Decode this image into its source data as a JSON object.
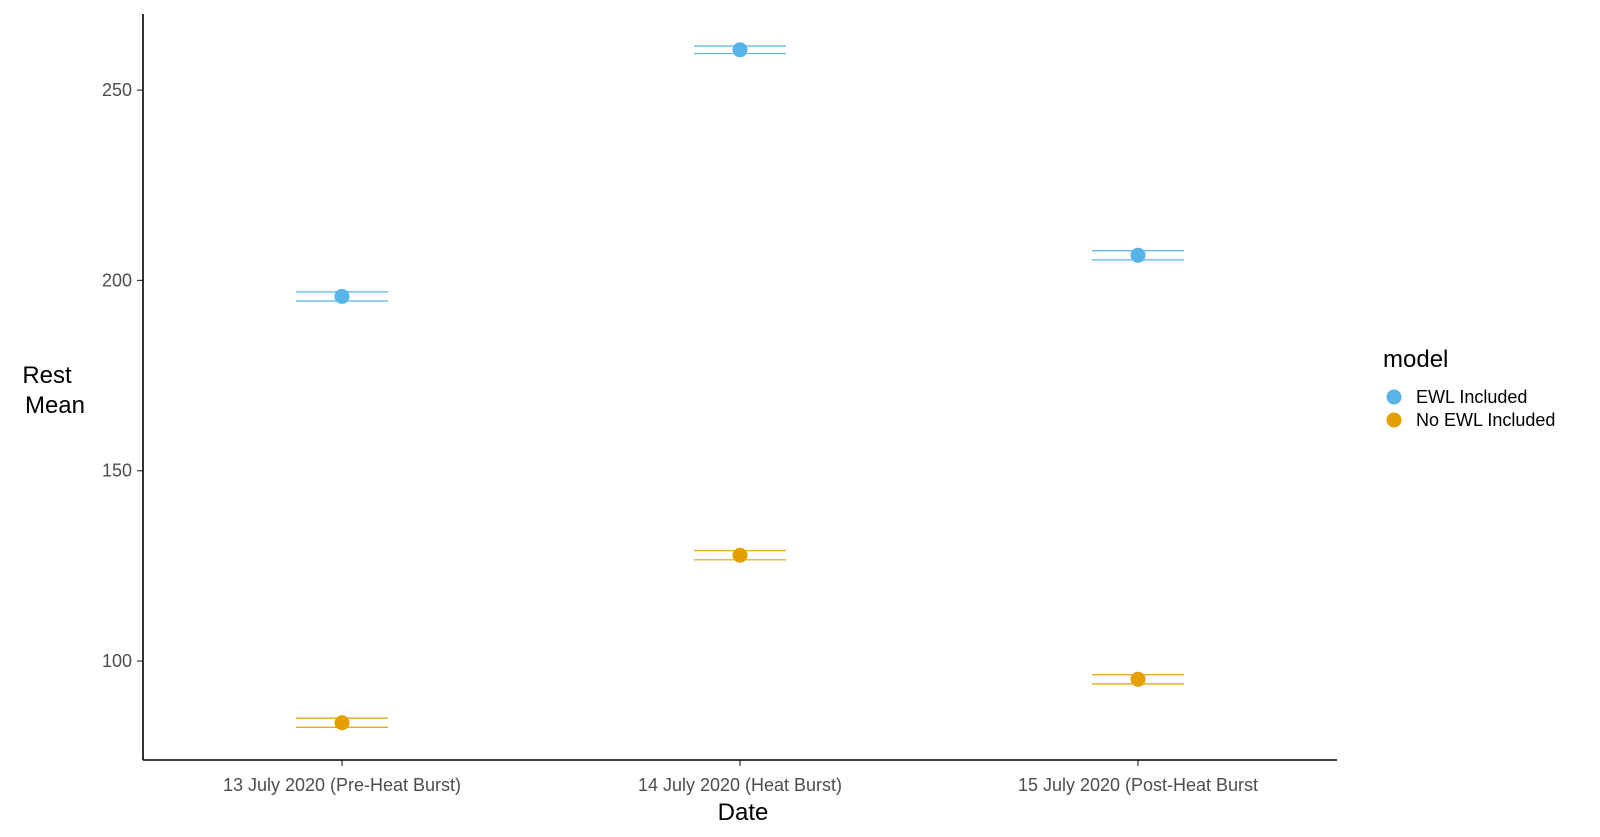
{
  "chart_data": {
    "type": "scatter",
    "title": "",
    "xlabel": "Date",
    "ylabel_lines": [
      "Rest",
      "Mean"
    ],
    "categories": [
      "13 July 2020 (Pre-Heat Burst)",
      "14 July 2020 (Heat Burst)",
      "15 July 2020 (Post-Heat Burst"
    ],
    "ylim": [
      74,
      270
    ],
    "yticks": [
      100,
      150,
      200,
      250
    ],
    "grid": false,
    "legend": {
      "title": "model",
      "placement": "right"
    },
    "series": [
      {
        "name": "EWL Included",
        "color": "#56B4E9",
        "values": [
          195.8,
          260.6,
          206.6
        ],
        "error_low": [
          194.6,
          259.6,
          205.4
        ],
        "error_high": [
          197.0,
          261.6,
          207.8
        ]
      },
      {
        "name": "No EWL Included",
        "color": "#E69F00",
        "values": [
          83.8,
          127.8,
          95.2
        ],
        "error_low": [
          82.6,
          126.6,
          94.0
        ],
        "error_high": [
          85.0,
          129.0,
          96.4
        ]
      }
    ]
  }
}
